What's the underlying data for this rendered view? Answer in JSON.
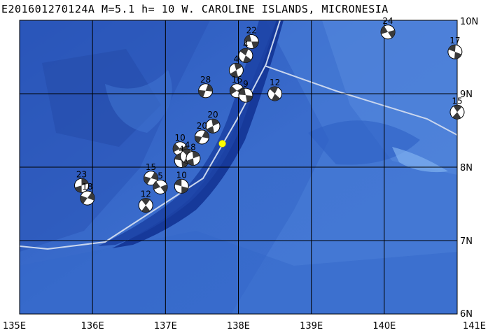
{
  "title": "E201601270124A  M=5.1  h= 10  W. CAROLINE ISLANDS, MICRONESIA",
  "lon_labels": [
    "135E",
    "136E",
    "137E",
    "138E",
    "139E",
    "140E",
    "141E"
  ],
  "lat_labels": [
    "6N",
    "7N",
    "8N",
    "9N",
    "10N"
  ],
  "extent": {
    "lon": [
      135,
      141
    ],
    "lat": [
      6,
      10
    ]
  },
  "epicenter": {
    "lon": 137.78,
    "lat": 8.32,
    "color": "#ffff00"
  },
  "colors": {
    "ocean_deep": "#2753b8",
    "ocean_mid": "#3566c8",
    "ocean_shallow": "#4a7fd6",
    "trench": "#173fa0",
    "grid": "#000000",
    "boundary": "#c9d6ee"
  },
  "events": [
    {
      "label": "22",
      "lon": 138.18,
      "lat": 9.71
    },
    {
      "label": "4",
      "lon": 138.1,
      "lat": 9.52
    },
    {
      "label": "4",
      "lon": 137.97,
      "lat": 9.32
    },
    {
      "label": "28",
      "lon": 137.55,
      "lat": 9.04
    },
    {
      "label": "16",
      "lon": 137.98,
      "lat": 9.04
    },
    {
      "label": "9",
      "lon": 138.1,
      "lat": 8.98
    },
    {
      "label": "12",
      "lon": 138.5,
      "lat": 9.0
    },
    {
      "label": "20",
      "lon": 137.65,
      "lat": 8.56
    },
    {
      "label": "20",
      "lon": 137.5,
      "lat": 8.41
    },
    {
      "label": "10",
      "lon": 137.2,
      "lat": 8.25
    },
    {
      "label": "4",
      "lon": 137.22,
      "lat": 8.09
    },
    {
      "label": "4",
      "lon": 137.3,
      "lat": 8.15
    },
    {
      "label": "8",
      "lon": 137.38,
      "lat": 8.12
    },
    {
      "label": "15",
      "lon": 136.8,
      "lat": 7.85
    },
    {
      "label": "5",
      "lon": 136.93,
      "lat": 7.73
    },
    {
      "label": "10",
      "lon": 137.22,
      "lat": 7.74
    },
    {
      "label": "12",
      "lon": 136.73,
      "lat": 7.48
    },
    {
      "label": "23",
      "lon": 135.85,
      "lat": 7.75
    },
    {
      "label": "18",
      "lon": 135.93,
      "lat": 7.58
    },
    {
      "label": "24",
      "lon": 140.05,
      "lat": 9.84
    },
    {
      "label": "17",
      "lon": 140.97,
      "lat": 9.57
    },
    {
      "label": "15",
      "lon": 141.0,
      "lat": 8.75
    }
  ]
}
